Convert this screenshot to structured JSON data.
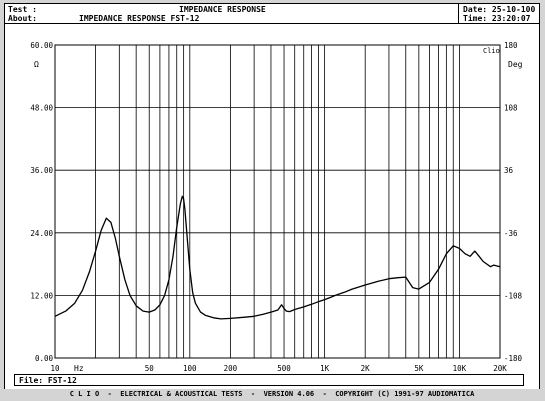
{
  "header": {
    "test_label": "Test :",
    "test_value": "IMPEDANCE RESPONSE",
    "about_label": "About:",
    "about_value": "IMPEDANCE RESPONSE FST-12",
    "date_label": "Date:",
    "date_value": "25-10-100",
    "time_label": "Time:",
    "time_value": "23:20:07"
  },
  "file_label": "File: FST-12",
  "footer_text": "C L I O  -  ELECTRICAL & ACOUSTICAL TESTS  -  VERSION 4.06  -  COPYRIGHT (C) 1991-97 AUDIOMATICA",
  "chart_data": {
    "type": "line",
    "title": "IMPEDANCE RESPONSE",
    "xlabel": "Hz",
    "ylabel": "Ω",
    "y2label": "Deg",
    "corner_label": "Clio",
    "x_scale": "log",
    "xlim": [
      10,
      20000
    ],
    "ylim": [
      0,
      60
    ],
    "y2lim": [
      -180,
      180
    ],
    "grid": true,
    "x_major_ticks": [
      {
        "value": 10,
        "label": "10"
      },
      {
        "value": 50,
        "label": "50"
      },
      {
        "value": 100,
        "label": "100"
      },
      {
        "value": 200,
        "label": "200"
      },
      {
        "value": 500,
        "label": "500"
      },
      {
        "value": 1000,
        "label": "1K"
      },
      {
        "value": 2000,
        "label": "2K"
      },
      {
        "value": 5000,
        "label": "5K"
      },
      {
        "value": 10000,
        "label": "10K"
      },
      {
        "value": 20000,
        "label": "20K"
      }
    ],
    "y_ticks": [
      {
        "value": 0,
        "label": "0.00"
      },
      {
        "value": 12,
        "label": "12.00"
      },
      {
        "value": 24,
        "label": "24.00"
      },
      {
        "value": 36,
        "label": "36.00"
      },
      {
        "value": 48,
        "label": "48.00"
      },
      {
        "value": 60,
        "label": "60.00"
      }
    ],
    "y2_ticks": [
      {
        "value": -180,
        "label": "-180"
      },
      {
        "value": -108,
        "label": "-108"
      },
      {
        "value": -36,
        "label": "-36"
      },
      {
        "value": 36,
        "label": "36"
      },
      {
        "value": 108,
        "label": "108"
      },
      {
        "value": 180,
        "label": "180"
      }
    ],
    "series": [
      {
        "x": [
          10,
          12,
          14,
          16,
          18,
          20,
          22,
          24,
          26,
          28,
          30,
          33,
          36,
          40,
          45,
          50,
          55,
          60,
          65,
          70,
          75,
          80,
          85,
          88,
          90,
          92,
          95,
          100,
          105,
          110,
          120,
          130,
          150,
          170,
          200,
          250,
          300,
          350,
          400,
          450,
          480,
          500,
          520,
          550,
          600,
          700,
          800,
          900,
          1000,
          1100,
          1200,
          1400,
          1600,
          2000,
          2500,
          3000,
          3500,
          4000,
          4500,
          5000,
          6000,
          7000,
          8000,
          9000,
          10000,
          11000,
          12000,
          13000,
          14000,
          15000,
          16000,
          17000,
          18000,
          20000
        ],
        "y": [
          8,
          9,
          10.5,
          13,
          16.5,
          20.5,
          24.5,
          26.8,
          26,
          23,
          19.5,
          15,
          12,
          10,
          9,
          8.8,
          9.2,
          10.2,
          12,
          15,
          19.5,
          25,
          29.5,
          31,
          30.5,
          28.5,
          24,
          17,
          12.5,
          10.5,
          8.8,
          8.2,
          7.7,
          7.5,
          7.6,
          7.8,
          8,
          8.4,
          8.8,
          9.2,
          10.2,
          9.5,
          9,
          8.9,
          9.3,
          9.8,
          10.3,
          10.8,
          11.2,
          11.6,
          12,
          12.6,
          13.2,
          14,
          14.7,
          15.2,
          15.4,
          15.5,
          13.5,
          13.2,
          14.5,
          17,
          20,
          21.5,
          21,
          20,
          19.5,
          20.5,
          19.5,
          18.5,
          18,
          17.5,
          17.8,
          17.5
        ]
      }
    ]
  }
}
